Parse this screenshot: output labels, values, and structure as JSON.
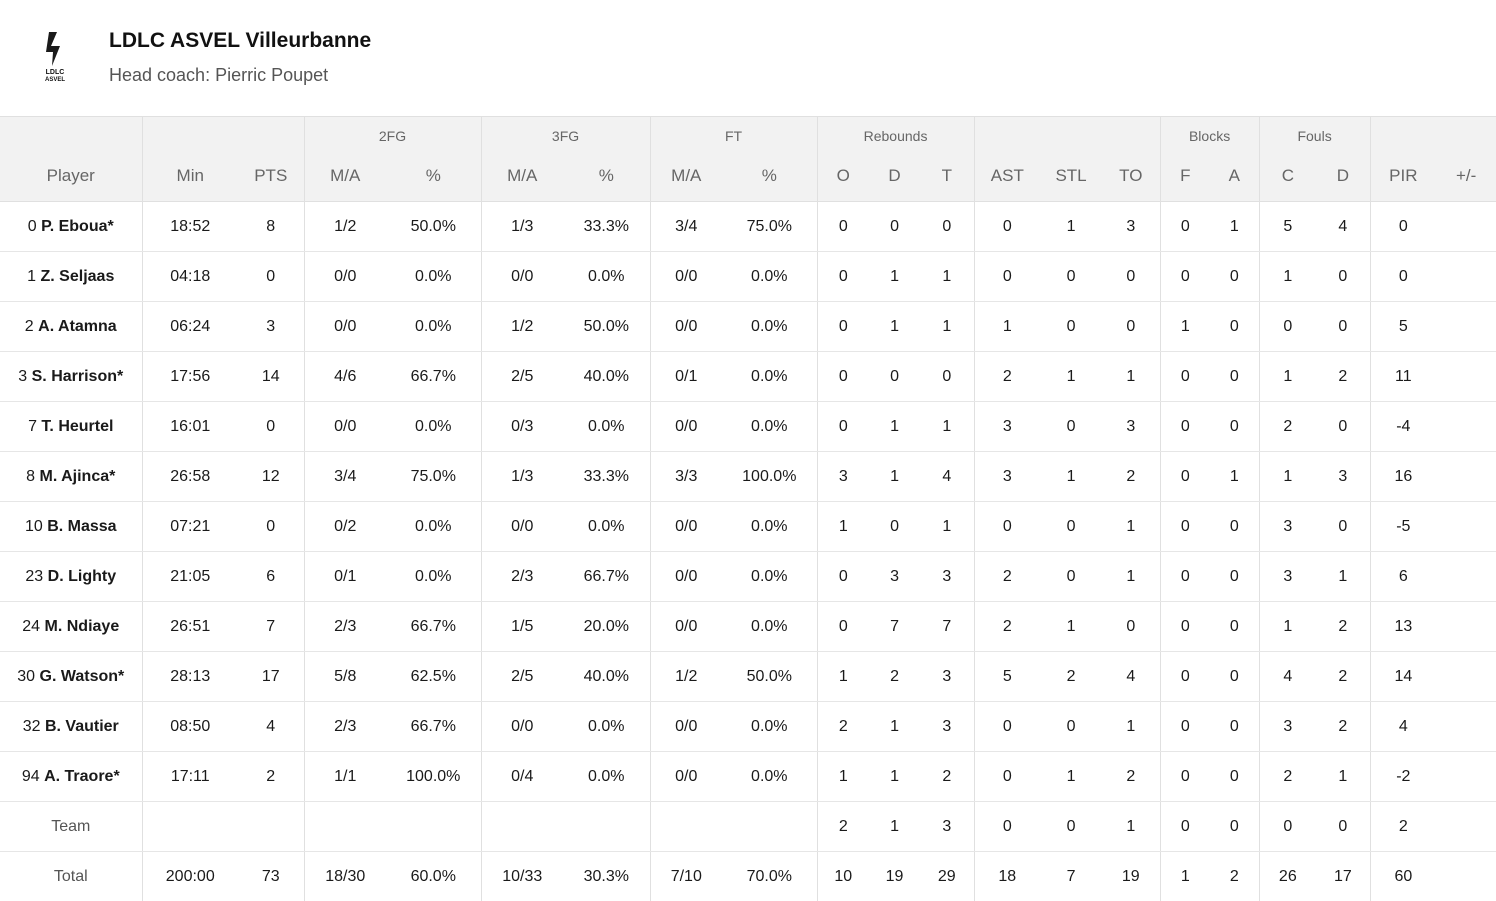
{
  "team": {
    "name": "LDLC ASVEL Villeurbanne",
    "coach": "Head coach: Pierric Poupet",
    "logo_text_1": "LDLC",
    "logo_text_2": "ASVEL"
  },
  "groups": {
    "fg2": "2FG",
    "fg3": "3FG",
    "ft": "FT",
    "rebounds": "Rebounds",
    "blocks": "Blocks",
    "fouls": "Fouls"
  },
  "columns": [
    "Player",
    "Min",
    "PTS",
    "M/A",
    "%",
    "M/A",
    "%",
    "M/A",
    "%",
    "O",
    "D",
    "T",
    "AST",
    "STL",
    "TO",
    "F",
    "A",
    "C",
    "D",
    "PIR",
    "+/-"
  ],
  "rows": [
    {
      "num": "0",
      "name": "P. Eboua*",
      "stats": [
        "18:52",
        "8",
        "1/2",
        "50.0%",
        "1/3",
        "33.3%",
        "3/4",
        "75.0%",
        "0",
        "0",
        "0",
        "0",
        "1",
        "3",
        "0",
        "1",
        "5",
        "4",
        "0",
        ""
      ]
    },
    {
      "num": "1",
      "name": "Z. Seljaas",
      "stats": [
        "04:18",
        "0",
        "0/0",
        "0.0%",
        "0/0",
        "0.0%",
        "0/0",
        "0.0%",
        "0",
        "1",
        "1",
        "0",
        "0",
        "0",
        "0",
        "0",
        "1",
        "0",
        "0",
        ""
      ]
    },
    {
      "num": "2",
      "name": "A. Atamna",
      "stats": [
        "06:24",
        "3",
        "0/0",
        "0.0%",
        "1/2",
        "50.0%",
        "0/0",
        "0.0%",
        "0",
        "1",
        "1",
        "1",
        "0",
        "0",
        "1",
        "0",
        "0",
        "0",
        "5",
        ""
      ]
    },
    {
      "num": "3",
      "name": "S. Harrison*",
      "stats": [
        "17:56",
        "14",
        "4/6",
        "66.7%",
        "2/5",
        "40.0%",
        "0/1",
        "0.0%",
        "0",
        "0",
        "0",
        "2",
        "1",
        "1",
        "0",
        "0",
        "1",
        "2",
        "11",
        ""
      ]
    },
    {
      "num": "7",
      "name": "T. Heurtel",
      "stats": [
        "16:01",
        "0",
        "0/0",
        "0.0%",
        "0/3",
        "0.0%",
        "0/0",
        "0.0%",
        "0",
        "1",
        "1",
        "3",
        "0",
        "3",
        "0",
        "0",
        "2",
        "0",
        "-4",
        ""
      ]
    },
    {
      "num": "8",
      "name": "M. Ajinca*",
      "stats": [
        "26:58",
        "12",
        "3/4",
        "75.0%",
        "1/3",
        "33.3%",
        "3/3",
        "100.0%",
        "3",
        "1",
        "4",
        "3",
        "1",
        "2",
        "0",
        "1",
        "1",
        "3",
        "16",
        ""
      ]
    },
    {
      "num": "10",
      "name": "B. Massa",
      "stats": [
        "07:21",
        "0",
        "0/2",
        "0.0%",
        "0/0",
        "0.0%",
        "0/0",
        "0.0%",
        "1",
        "0",
        "1",
        "0",
        "0",
        "1",
        "0",
        "0",
        "3",
        "0",
        "-5",
        ""
      ]
    },
    {
      "num": "23",
      "name": "D. Lighty",
      "stats": [
        "21:05",
        "6",
        "0/1",
        "0.0%",
        "2/3",
        "66.7%",
        "0/0",
        "0.0%",
        "0",
        "3",
        "3",
        "2",
        "0",
        "1",
        "0",
        "0",
        "3",
        "1",
        "6",
        ""
      ]
    },
    {
      "num": "24",
      "name": "M. Ndiaye",
      "stats": [
        "26:51",
        "7",
        "2/3",
        "66.7%",
        "1/5",
        "20.0%",
        "0/0",
        "0.0%",
        "0",
        "7",
        "7",
        "2",
        "1",
        "0",
        "0",
        "0",
        "1",
        "2",
        "13",
        ""
      ]
    },
    {
      "num": "30",
      "name": "G. Watson*",
      "stats": [
        "28:13",
        "17",
        "5/8",
        "62.5%",
        "2/5",
        "40.0%",
        "1/2",
        "50.0%",
        "1",
        "2",
        "3",
        "5",
        "2",
        "4",
        "0",
        "0",
        "4",
        "2",
        "14",
        ""
      ]
    },
    {
      "num": "32",
      "name": "B. Vautier",
      "stats": [
        "08:50",
        "4",
        "2/3",
        "66.7%",
        "0/0",
        "0.0%",
        "0/0",
        "0.0%",
        "2",
        "1",
        "3",
        "0",
        "0",
        "1",
        "0",
        "0",
        "3",
        "2",
        "4",
        ""
      ]
    },
    {
      "num": "94",
      "name": "A. Traore*",
      "stats": [
        "17:11",
        "2",
        "1/1",
        "100.0%",
        "0/4",
        "0.0%",
        "0/0",
        "0.0%",
        "1",
        "1",
        "2",
        "0",
        "1",
        "2",
        "0",
        "0",
        "2",
        "1",
        "-2",
        ""
      ]
    }
  ],
  "team_row": {
    "label": "Team",
    "stats": [
      "",
      "",
      "",
      "",
      "",
      "",
      "",
      "",
      "2",
      "1",
      "3",
      "0",
      "0",
      "1",
      "0",
      "0",
      "0",
      "0",
      "2",
      ""
    ]
  },
  "total_row": {
    "label": "Total",
    "stats": [
      "200:00",
      "73",
      "18/30",
      "60.0%",
      "10/33",
      "30.3%",
      "7/10",
      "70.0%",
      "10",
      "19",
      "29",
      "18",
      "7",
      "19",
      "1",
      "2",
      "26",
      "17",
      "60",
      ""
    ]
  }
}
